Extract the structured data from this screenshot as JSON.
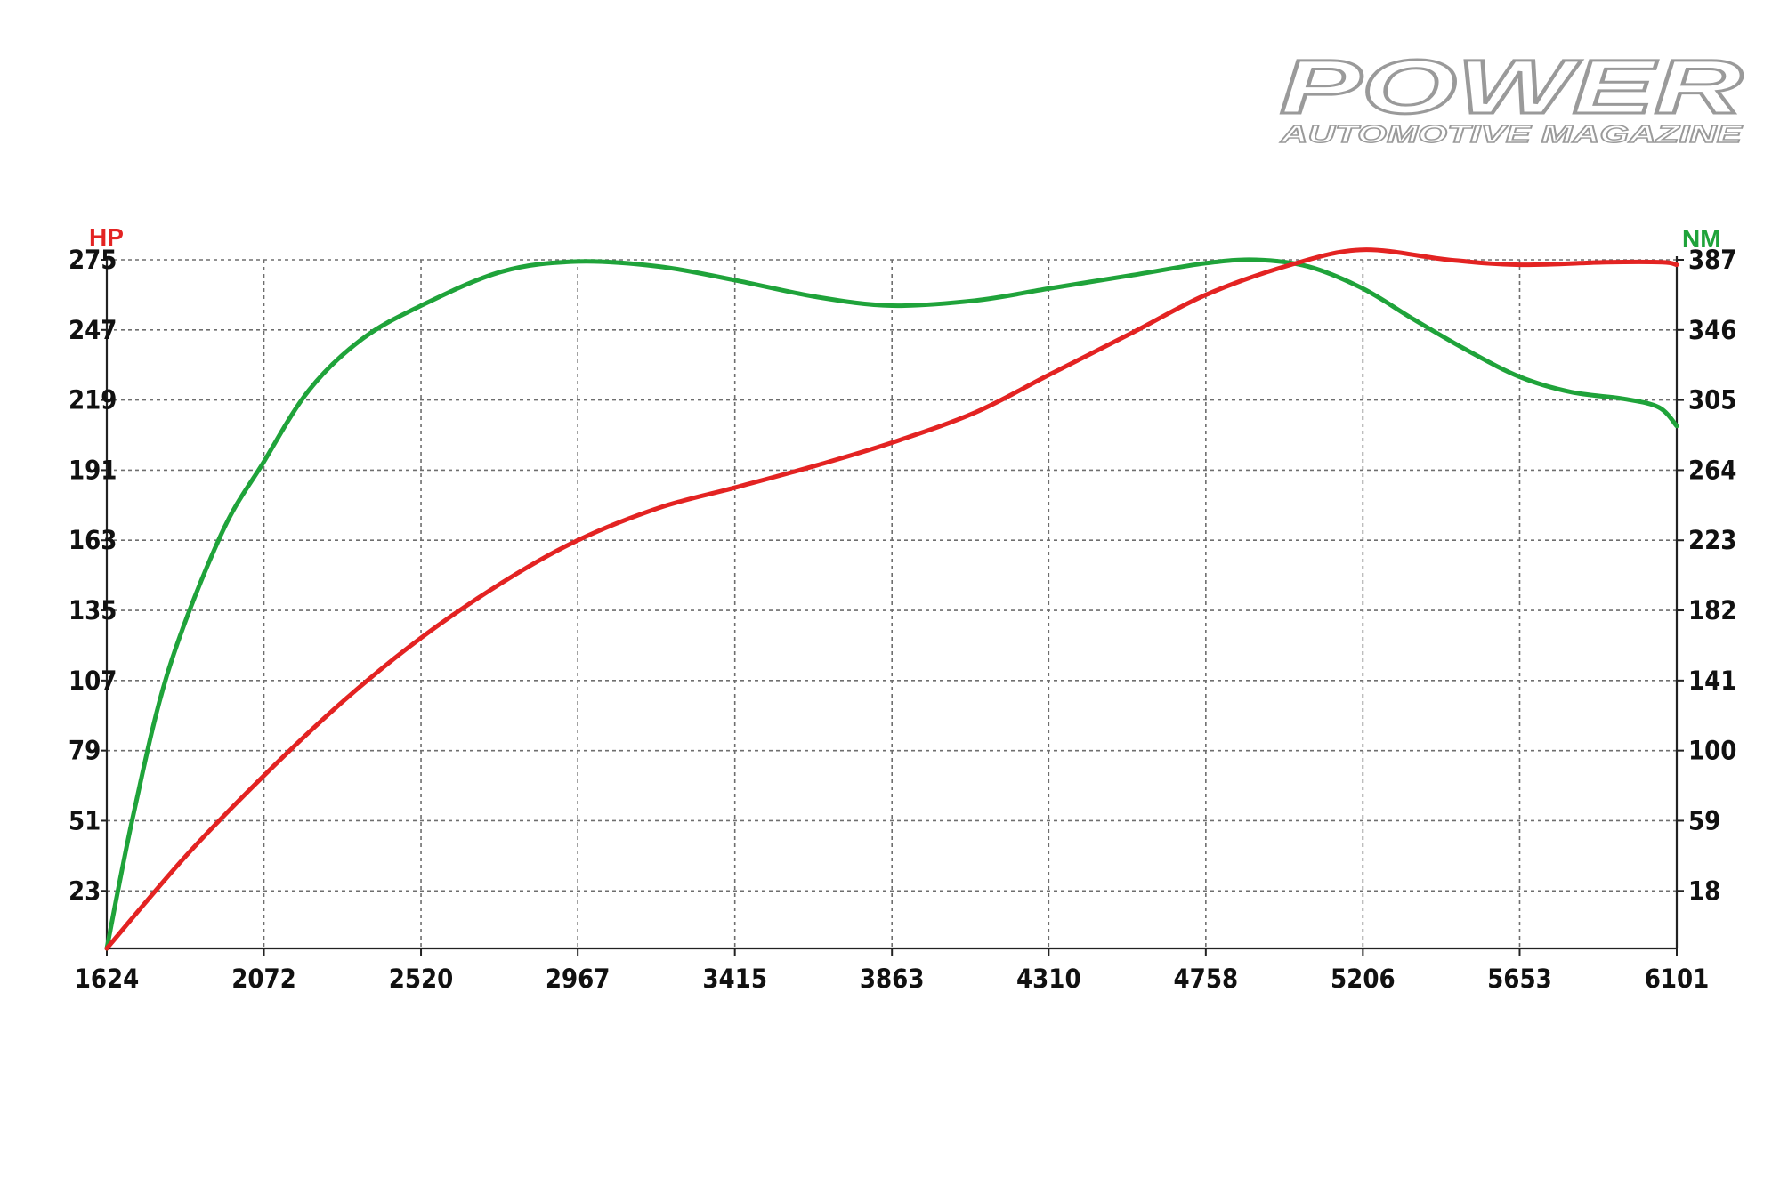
{
  "logo": {
    "main_text": "POWER",
    "sub_text": "AUTOMOTIVE MAGAZINE"
  },
  "colors": {
    "hp": "#e32322",
    "nm": "#1fa33a",
    "grid": "#6e6e6e",
    "axis": "#222222"
  },
  "chart_data": {
    "type": "line",
    "title": "",
    "xlabel": "",
    "ylabel_left": "HP",
    "ylabel_right": "NM",
    "x_ticks": [
      "1624",
      "2072",
      "2520",
      "2967",
      "3415",
      "3863",
      "4310",
      "4758",
      "5206",
      "5653",
      "6101"
    ],
    "y_left_ticks": [
      "23",
      "51",
      "79",
      "107",
      "135",
      "163",
      "191",
      "219",
      "247",
      "275"
    ],
    "y_right_ticks": [
      "18",
      "59",
      "100",
      "141",
      "182",
      "223",
      "264",
      "305",
      "346",
      "387"
    ],
    "xlim": [
      1624,
      6101
    ],
    "ylim_left": [
      0,
      275
    ],
    "ylim_right": [
      -19,
      387
    ],
    "grid": true,
    "series": [
      {
        "name": "HP",
        "axis": "left",
        "color": "#e32322",
        "x": [
          1624,
          1850,
          2072,
          2300,
          2520,
          2750,
          2967,
          3200,
          3415,
          3650,
          3863,
          4100,
          4310,
          4550,
          4758,
          5000,
          5206,
          5450,
          5653,
          5900,
          6060,
          6101
        ],
        "y": [
          0,
          37,
          69,
          99,
          124,
          146,
          163,
          176,
          184,
          193,
          202,
          214,
          229,
          246,
          261,
          273,
          279,
          275,
          273,
          274,
          274,
          273
        ]
      },
      {
        "name": "NM",
        "axis": "right",
        "color": "#1fa33a",
        "x": [
          1624,
          1700,
          1800,
          1950,
          2072,
          2200,
          2350,
          2520,
          2750,
          2967,
          3200,
          3415,
          3650,
          3863,
          4100,
          4310,
          4550,
          4758,
          4900,
          5050,
          5206,
          5350,
          5500,
          5653,
          5800,
          5950,
          6050,
          6101
        ],
        "y": [
          -19,
          60,
          145,
          225,
          268,
          310,
          340,
          360,
          380,
          386,
          383,
          375,
          365,
          360,
          363,
          370,
          378,
          385,
          387,
          383,
          370,
          352,
          334,
          318,
          309,
          305,
          300,
          289
        ]
      }
    ]
  }
}
